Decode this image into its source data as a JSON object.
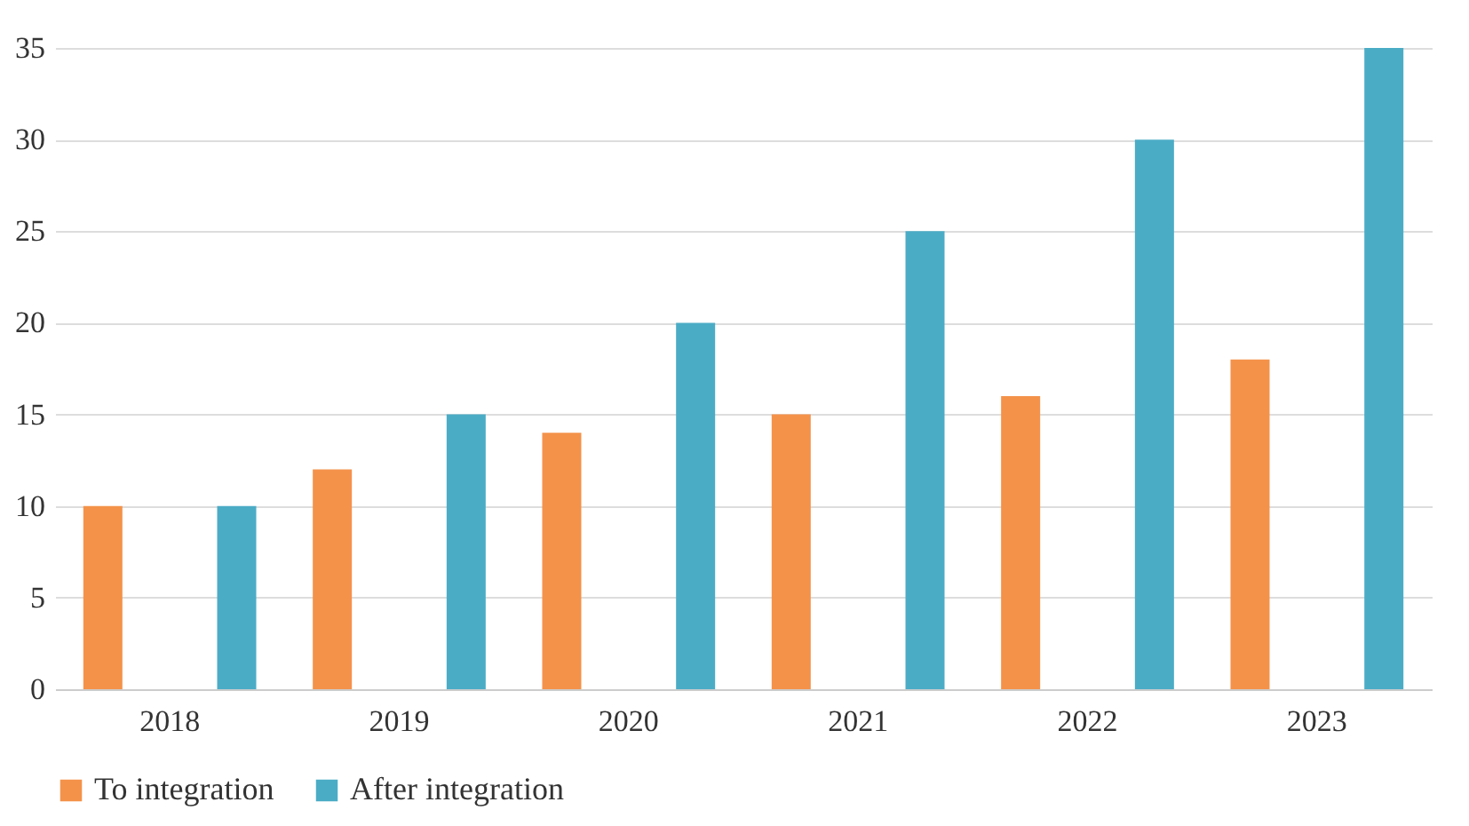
{
  "chart_data": {
    "type": "bar",
    "categories": [
      "2018",
      "2019",
      "2020",
      "2021",
      "2022",
      "2023"
    ],
    "series": [
      {
        "name": "To integration",
        "color": "#f4924a",
        "values": [
          10,
          12,
          14,
          15,
          16,
          18
        ]
      },
      {
        "name": "After integration",
        "color": "#4bacc6",
        "values": [
          10,
          15,
          20,
          25,
          30,
          35
        ]
      }
    ],
    "ylim": [
      0,
      35
    ],
    "yticks": [
      0,
      5,
      10,
      15,
      20,
      25,
      30,
      35
    ],
    "grid": "y",
    "legend": "bottom"
  }
}
